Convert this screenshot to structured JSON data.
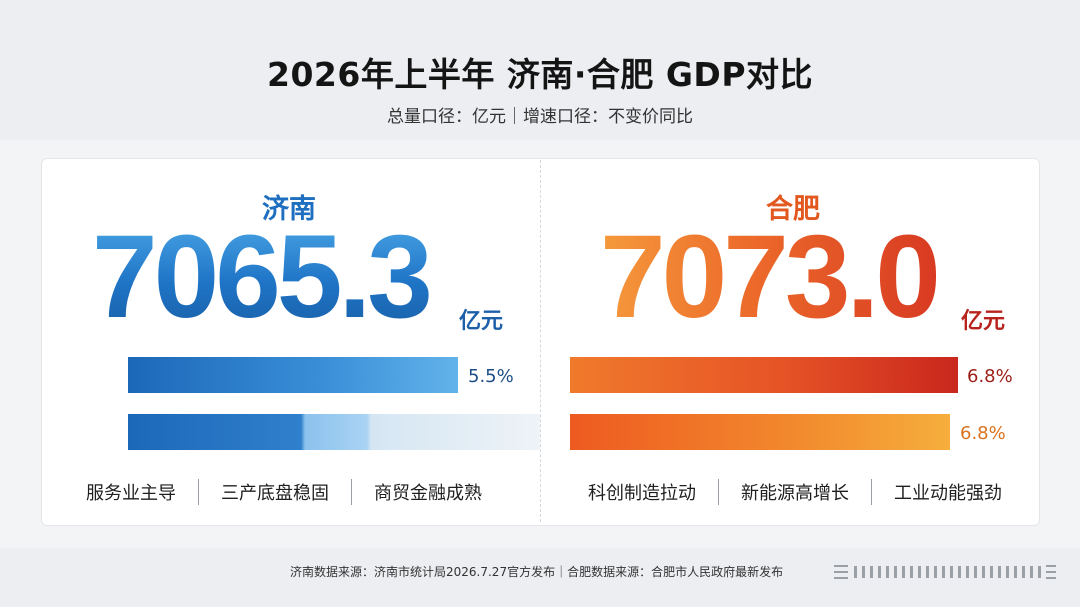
{
  "header": {
    "title": "2026年上半年 济南·合肥 GDP对比",
    "subtitle": "总量口径：亿元｜增速口径：不变价同比"
  },
  "jinan": {
    "name": "济南",
    "gdp": "7065.3",
    "unit": "亿元",
    "growth_label": "5.5%",
    "growth_value": 5.5,
    "second_label": "",
    "tags": [
      "服务业主导",
      "三产底盘稳固",
      "商贸金融成熟"
    ],
    "color": "#1f74c6"
  },
  "hefei": {
    "name": "合肥",
    "gdp": "7073.0",
    "unit": "亿元",
    "growth_label": "6.8%",
    "growth_value": 6.8,
    "second_label": "6.8%",
    "tags": [
      "科创制造拉动",
      "新能源高增长",
      "工业动能强劲"
    ],
    "color": "#e2581f"
  },
  "footer": {
    "text": "济南数据来源：济南市统计局2026.7.27官方发布｜合肥数据来源：合肥市人民政府最新发布"
  }
}
